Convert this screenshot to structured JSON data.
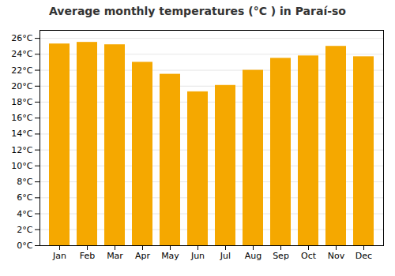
{
  "chart_data": {
    "type": "bar",
    "title": "Average monthly temperatures (°C ) in Paraí-so",
    "categories": [
      "Jan",
      "Feb",
      "Mar",
      "Apr",
      "May",
      "Jun",
      "Jul",
      "Aug",
      "Sep",
      "Oct",
      "Nov",
      "Dec"
    ],
    "values": [
      25.3,
      25.5,
      25.2,
      23.0,
      21.5,
      19.3,
      20.1,
      22.0,
      23.5,
      23.8,
      25.0,
      23.7
    ],
    "color": "#F5A800",
    "ylim": [
      0,
      27
    ],
    "yticks": [
      {
        "value": 0,
        "label": "0°C"
      },
      {
        "value": 2,
        "label": "2°C"
      },
      {
        "value": 4,
        "label": "4°C"
      },
      {
        "value": 6,
        "label": "6°C"
      },
      {
        "value": 8,
        "label": "8°C"
      },
      {
        "value": 10,
        "label": "10°C"
      },
      {
        "value": 12,
        "label": "12°C"
      },
      {
        "value": 14,
        "label": "14°C"
      },
      {
        "value": 16,
        "label": "16°C"
      },
      {
        "value": 18,
        "label": "18°C"
      },
      {
        "value": 20,
        "label": "20°C"
      },
      {
        "value": 22,
        "label": "22°C"
      },
      {
        "value": 24,
        "label": "24°C"
      },
      {
        "value": 26,
        "label": "26°C"
      }
    ],
    "grid": true
  }
}
